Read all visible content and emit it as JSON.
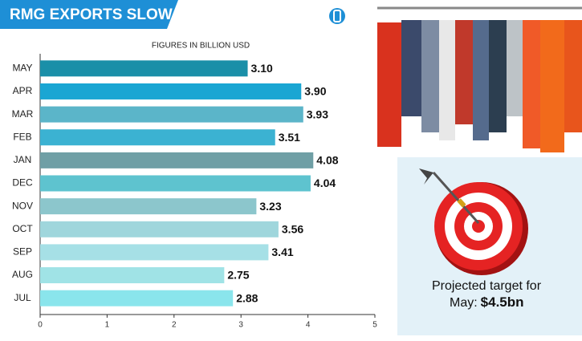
{
  "chart_data": {
    "type": "bar",
    "orientation": "horizontal",
    "title": "RMG EXPORTS SLOW",
    "subtitle": "FIGURES IN BILLION USD",
    "categories": [
      "MAY",
      "APR",
      "MAR",
      "FEB",
      "JAN",
      "DEC",
      "NOV",
      "OCT",
      "SEP",
      "AUG",
      "JUL"
    ],
    "values": [
      3.1,
      3.9,
      3.93,
      3.51,
      4.08,
      4.04,
      3.23,
      3.56,
      3.41,
      2.75,
      2.88
    ],
    "value_labels": [
      "3.10",
      "3.90",
      "3.93",
      "3.51",
      "4.08",
      "4.04",
      "3.23",
      "3.56",
      "3.41",
      "2.75",
      "2.88"
    ],
    "colors": [
      "#1a8fa8",
      "#1aa6d3",
      "#5bb5c9",
      "#3bb2d2",
      "#6f9fa5",
      "#5ec3cf",
      "#8cc6cc",
      "#9fd6dc",
      "#a6e0e6",
      "#a0e3e6",
      "#8ae5ec"
    ],
    "xlim": [
      0,
      5
    ],
    "xticks": [
      0,
      1,
      2,
      3,
      4,
      5
    ],
    "annotation": {
      "text": "Projected target for",
      "label": "May:",
      "value_label": "$4.5bn"
    }
  }
}
